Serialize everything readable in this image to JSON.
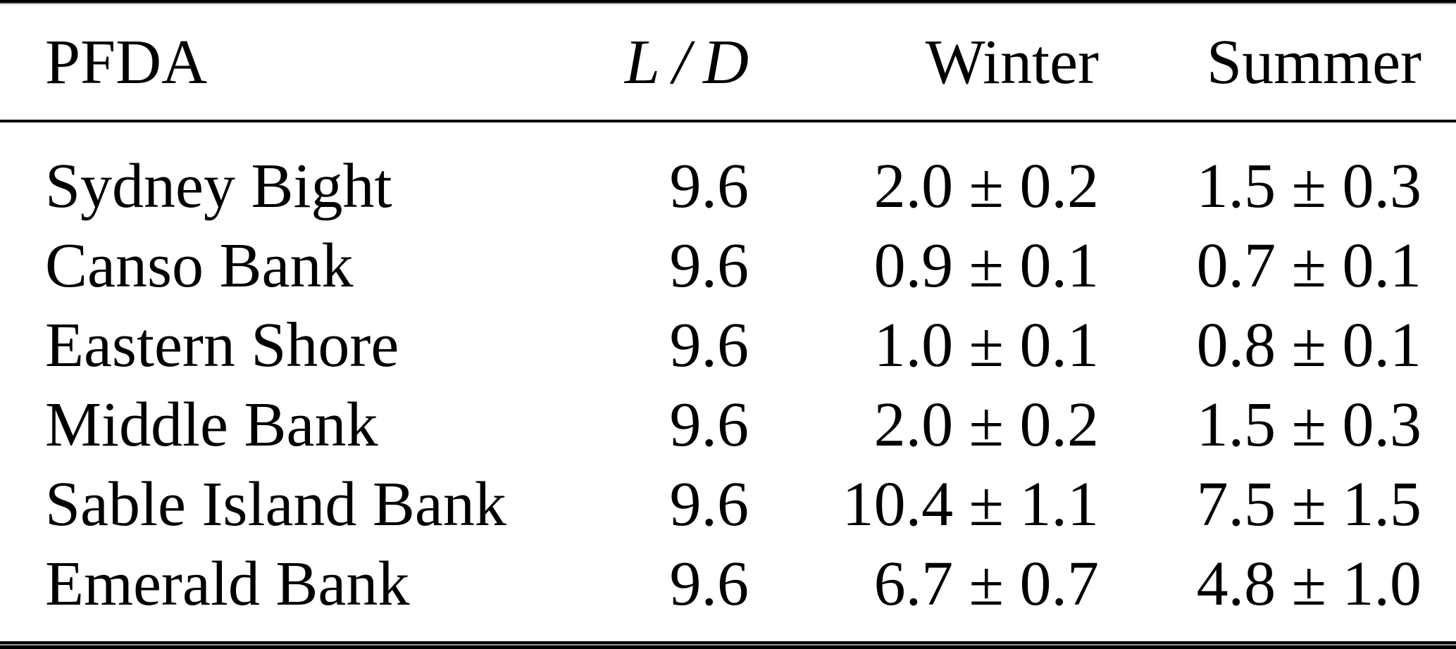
{
  "table": {
    "columns": [
      {
        "key": "pfda",
        "label": "PFDA"
      },
      {
        "key": "ld",
        "label": "L / D"
      },
      {
        "key": "winter",
        "label": "Winter"
      },
      {
        "key": "summer",
        "label": "Summer"
      }
    ],
    "rows": [
      {
        "pfda": "Sydney Bight",
        "ld": "9.6",
        "winter": "2.0 ± 0.2",
        "summer": "1.5 ± 0.3"
      },
      {
        "pfda": "Canso Bank",
        "ld": "9.6",
        "winter": "0.9 ± 0.1",
        "summer": "0.7 ± 0.1"
      },
      {
        "pfda": "Eastern Shore",
        "ld": "9.6",
        "winter": "1.0 ± 0.1",
        "summer": "0.8 ± 0.1"
      },
      {
        "pfda": "Middle Bank",
        "ld": "9.6",
        "winter": "2.0 ± 0.2",
        "summer": "1.5 ± 0.3"
      },
      {
        "pfda": "Sable Island Bank",
        "ld": "9.6",
        "winter": "10.4 ± 1.1",
        "summer": "7.5 ± 1.5"
      },
      {
        "pfda": "Emerald Bank",
        "ld": "9.6",
        "winter": "6.7 ± 0.7",
        "summer": "4.8 ± 1.0"
      }
    ]
  },
  "colors": {
    "text": "#000000",
    "rule": "#000000",
    "rule_gap": "#9a9a9a",
    "background": "#ffffff"
  }
}
